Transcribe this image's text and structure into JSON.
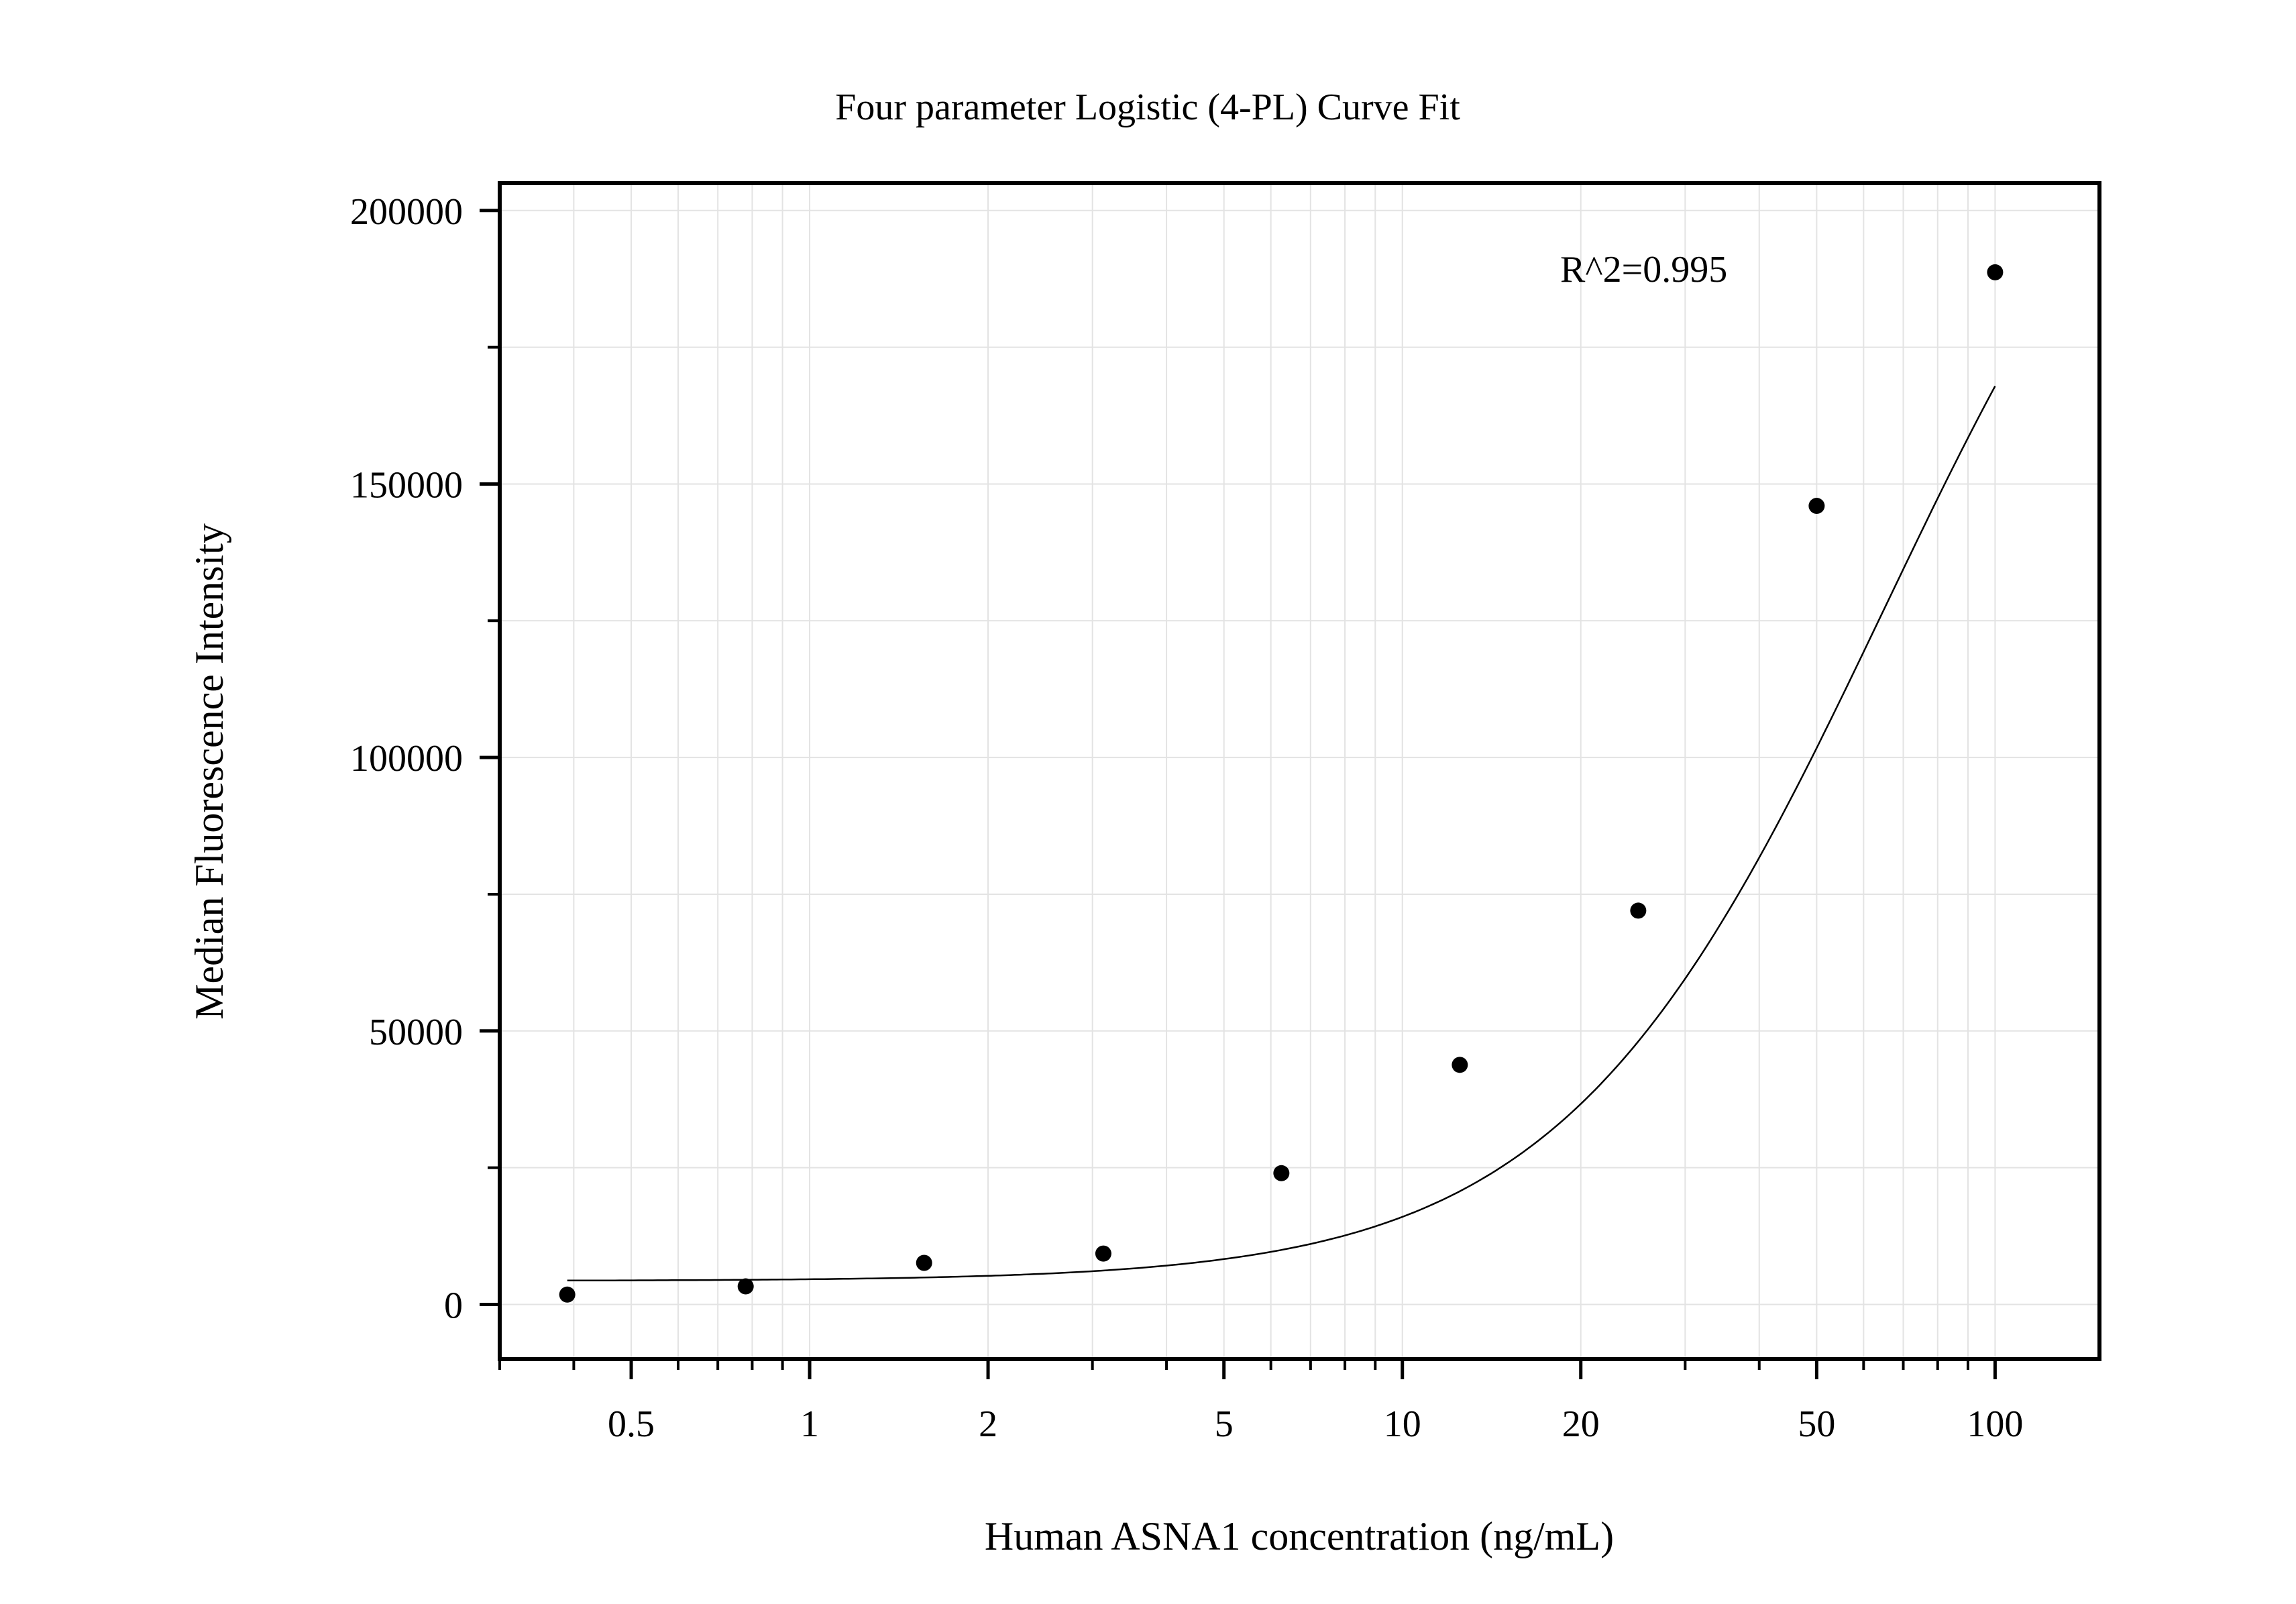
{
  "chart_data": {
    "type": "scatter",
    "title": "Four parameter Logistic (4-PL) Curve Fit",
    "xlabel": "Human ASNA1 concentration (ng/mL)",
    "ylabel": "Median Fluorescence Intensity",
    "x_scale": "log",
    "xlim": [
      0.3,
      150
    ],
    "ylim": [
      -10000,
      205000
    ],
    "x_ticks": [
      0.5,
      1,
      2,
      5,
      10,
      20,
      50,
      100
    ],
    "x_tick_labels": [
      "0.5",
      "1",
      "2",
      "5",
      "10",
      "20",
      "50",
      "100"
    ],
    "y_ticks": [
      0,
      50000,
      100000,
      150000,
      200000
    ],
    "y_tick_labels": [
      "0",
      "50000",
      "100000",
      "150000",
      "200000"
    ],
    "grid": true,
    "annotation": "R^2=0.995",
    "series": [
      {
        "type": "scatter",
        "x": [
          0.39,
          0.78,
          1.56,
          3.13,
          6.25,
          12.5,
          25,
          50,
          100
        ],
        "y": [
          1800,
          3300,
          7600,
          9300,
          24000,
          43800,
          72000,
          146000,
          188700
        ]
      },
      {
        "type": "line",
        "fit": "4PL",
        "params": {
          "bottom": 4300,
          "top": 250000,
          "ec50": 65,
          "hill": 1.6
        }
      }
    ]
  }
}
